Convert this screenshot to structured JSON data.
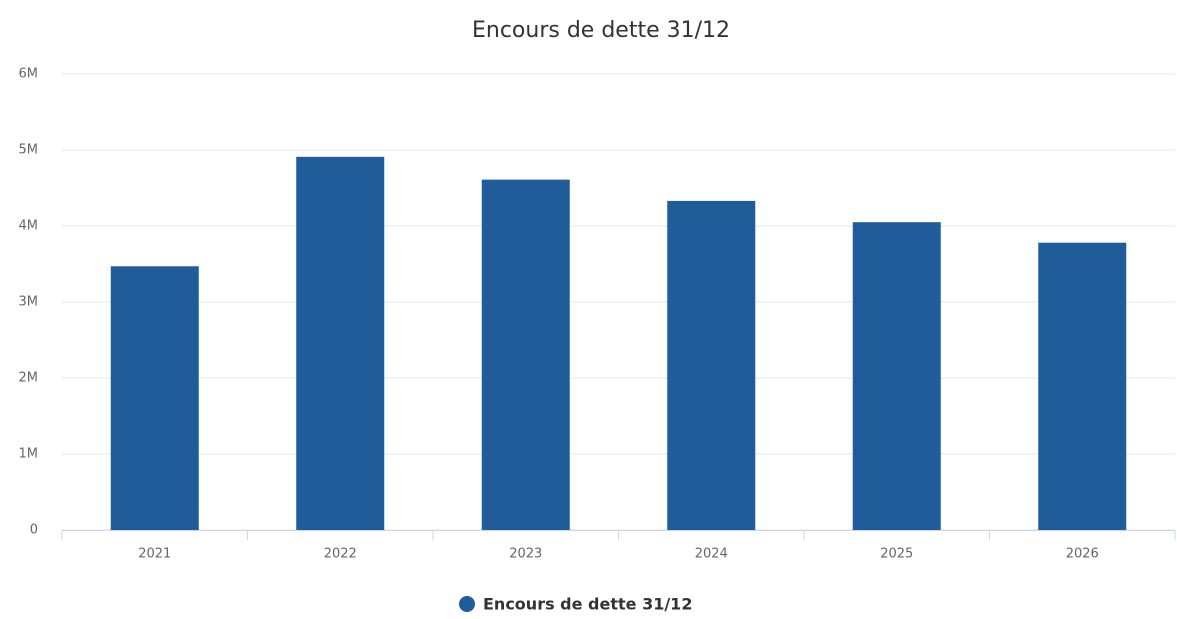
{
  "chart_data": {
    "type": "bar",
    "title": "Encours de dette 31/12",
    "categories": [
      "2021",
      "2022",
      "2023",
      "2024",
      "2025",
      "2026"
    ],
    "series": [
      {
        "name": "Encours de dette 31/12",
        "color": "#1f5c99",
        "values": [
          3470000,
          4910000,
          4610000,
          4330000,
          4050000,
          3780000
        ]
      }
    ],
    "ylim": [
      0,
      6000000
    ],
    "yticks": [
      0,
      {
        "value": 1000000,
        "label": "1M"
      },
      {
        "value": 2000000,
        "label": "2M"
      },
      {
        "value": 3000000,
        "label": "3M"
      },
      {
        "value": 4000000,
        "label": "4M"
      },
      {
        "value": 5000000,
        "label": "5M"
      },
      {
        "value": 6000000,
        "label": "6M"
      }
    ],
    "grid": true,
    "legend": "bottom"
  }
}
